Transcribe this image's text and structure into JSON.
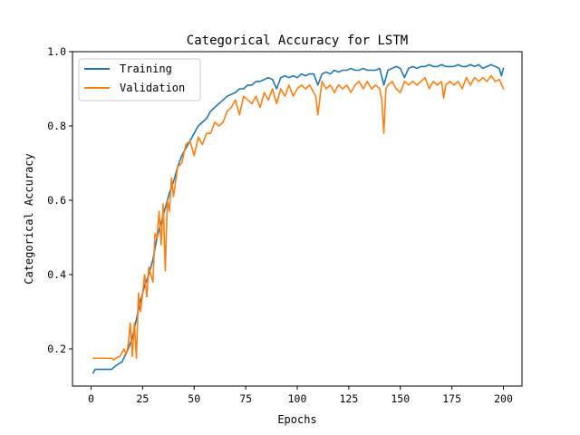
{
  "chart_data": {
    "type": "line",
    "title": "Categorical Accuracy for LSTM",
    "xlabel": "Epochs",
    "ylabel": "Categorical Accuracy",
    "xlim": [
      -9,
      209
    ],
    "ylim": [
      0.1,
      1.0
    ],
    "x_ticks": [
      0,
      25,
      50,
      75,
      100,
      125,
      150,
      175,
      200
    ],
    "y_ticks": [
      0.2,
      0.4,
      0.6,
      0.8,
      1.0
    ],
    "x_tick_labels": [
      "0",
      "25",
      "50",
      "75",
      "100",
      "125",
      "150",
      "175",
      "200"
    ],
    "y_tick_labels": [
      "0.2",
      "0.4",
      "0.6",
      "0.8",
      "1.0"
    ],
    "grid": false,
    "legend_position": "top-left",
    "colors": {
      "Training": "#1f77b4",
      "Validation": "#ff7f0e"
    },
    "series": [
      {
        "name": "Training",
        "x": [
          1,
          2,
          5,
          8,
          10,
          12,
          15,
          18,
          20,
          22,
          24,
          26,
          28,
          30,
          32,
          34,
          36,
          38,
          40,
          42,
          44,
          46,
          48,
          50,
          52,
          54,
          56,
          58,
          60,
          62,
          64,
          66,
          68,
          70,
          72,
          74,
          76,
          78,
          80,
          82,
          84,
          86,
          88,
          90,
          92,
          94,
          96,
          98,
          100,
          102,
          104,
          106,
          108,
          110,
          112,
          114,
          116,
          118,
          120,
          122,
          124,
          126,
          128,
          130,
          132,
          134,
          136,
          138,
          140,
          142,
          144,
          146,
          148,
          150,
          152,
          154,
          156,
          158,
          160,
          162,
          164,
          166,
          168,
          170,
          172,
          174,
          176,
          178,
          180,
          182,
          184,
          186,
          188,
          190,
          192,
          194,
          196,
          198,
          199,
          200
        ],
        "values": [
          0.135,
          0.145,
          0.145,
          0.145,
          0.145,
          0.155,
          0.165,
          0.2,
          0.23,
          0.28,
          0.33,
          0.37,
          0.4,
          0.44,
          0.5,
          0.54,
          0.58,
          0.62,
          0.65,
          0.69,
          0.72,
          0.74,
          0.76,
          0.78,
          0.8,
          0.81,
          0.82,
          0.84,
          0.85,
          0.86,
          0.87,
          0.88,
          0.885,
          0.89,
          0.9,
          0.9,
          0.91,
          0.91,
          0.92,
          0.92,
          0.925,
          0.93,
          0.925,
          0.9,
          0.93,
          0.935,
          0.93,
          0.935,
          0.93,
          0.94,
          0.935,
          0.94,
          0.94,
          0.91,
          0.94,
          0.945,
          0.94,
          0.95,
          0.945,
          0.95,
          0.95,
          0.955,
          0.95,
          0.95,
          0.955,
          0.95,
          0.95,
          0.95,
          0.955,
          0.91,
          0.95,
          0.955,
          0.96,
          0.955,
          0.93,
          0.955,
          0.96,
          0.955,
          0.96,
          0.96,
          0.965,
          0.96,
          0.96,
          0.965,
          0.96,
          0.96,
          0.96,
          0.965,
          0.96,
          0.96,
          0.965,
          0.96,
          0.965,
          0.955,
          0.96,
          0.965,
          0.96,
          0.955,
          0.935,
          0.955
        ]
      },
      {
        "name": "Validation",
        "x": [
          1,
          2,
          5,
          8,
          10,
          11,
          12,
          14,
          16,
          17,
          18,
          19,
          20,
          21,
          22,
          23,
          24,
          26,
          27,
          28,
          30,
          31,
          32,
          33,
          34,
          35,
          36,
          37,
          38,
          39,
          40,
          42,
          44,
          46,
          48,
          50,
          52,
          54,
          56,
          58,
          60,
          62,
          64,
          66,
          68,
          70,
          72,
          74,
          76,
          78,
          80,
          82,
          84,
          86,
          88,
          90,
          92,
          94,
          96,
          98,
          100,
          102,
          104,
          106,
          108,
          109,
          110,
          112,
          114,
          116,
          118,
          120,
          122,
          124,
          126,
          128,
          130,
          132,
          134,
          136,
          138,
          140,
          141,
          142,
          143,
          144,
          146,
          148,
          150,
          152,
          154,
          156,
          158,
          160,
          162,
          164,
          166,
          168,
          170,
          171,
          172,
          174,
          176,
          178,
          180,
          182,
          184,
          186,
          188,
          190,
          192,
          194,
          196,
          198,
          200
        ],
        "values": [
          0.175,
          0.175,
          0.175,
          0.175,
          0.175,
          0.17,
          0.175,
          0.18,
          0.2,
          0.185,
          0.21,
          0.27,
          0.18,
          0.27,
          0.175,
          0.35,
          0.3,
          0.4,
          0.34,
          0.42,
          0.38,
          0.51,
          0.5,
          0.57,
          0.48,
          0.59,
          0.41,
          0.6,
          0.57,
          0.66,
          0.61,
          0.69,
          0.7,
          0.75,
          0.76,
          0.72,
          0.77,
          0.75,
          0.78,
          0.78,
          0.81,
          0.8,
          0.81,
          0.84,
          0.85,
          0.87,
          0.83,
          0.88,
          0.87,
          0.86,
          0.88,
          0.85,
          0.89,
          0.87,
          0.9,
          0.86,
          0.9,
          0.88,
          0.91,
          0.88,
          0.9,
          0.91,
          0.9,
          0.91,
          0.89,
          0.88,
          0.83,
          0.92,
          0.9,
          0.91,
          0.89,
          0.91,
          0.9,
          0.91,
          0.89,
          0.91,
          0.92,
          0.9,
          0.92,
          0.9,
          0.91,
          0.9,
          0.87,
          0.78,
          0.9,
          0.91,
          0.92,
          0.9,
          0.89,
          0.92,
          0.91,
          0.92,
          0.91,
          0.92,
          0.93,
          0.9,
          0.92,
          0.91,
          0.92,
          0.875,
          0.91,
          0.92,
          0.91,
          0.92,
          0.9,
          0.93,
          0.91,
          0.93,
          0.92,
          0.93,
          0.92,
          0.935,
          0.92,
          0.925,
          0.9
        ]
      }
    ]
  }
}
